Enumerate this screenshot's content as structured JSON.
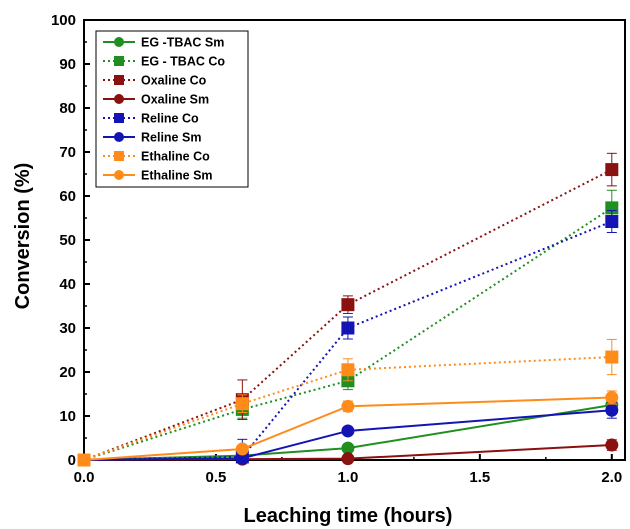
{
  "chart_data": {
    "type": "line",
    "title": "",
    "xlabel": "Leaching time (hours)",
    "ylabel": "Conversion (%)",
    "xlim": [
      0,
      2.05
    ],
    "ylim": [
      0,
      100
    ],
    "xticks": [
      "0.0",
      "0.5",
      "1.0",
      "1.5",
      "2.0"
    ],
    "yticks": [
      "0",
      "10",
      "20",
      "30",
      "40",
      "50",
      "60",
      "70",
      "80",
      "90",
      "100"
    ],
    "grid": false,
    "legend_position": "top-left",
    "series": [
      {
        "name": "EG -TBAC Sm",
        "color": "#1f8f1f",
        "line": "solid",
        "marker": "circle",
        "x": [
          0,
          0.6,
          1.0,
          2.0
        ],
        "y": [
          0,
          1.0,
          2.7,
          12.5
        ],
        "err": [
          0,
          0,
          0.5,
          2.0
        ]
      },
      {
        "name": "EG - TBAC Co",
        "color": "#1f8f1f",
        "line": "dotted",
        "marker": "square",
        "x": [
          0,
          0.6,
          1.0,
          2.0
        ],
        "y": [
          0,
          11.5,
          18.0,
          57.3
        ],
        "err": [
          0,
          2.0,
          2.0,
          4.0
        ]
      },
      {
        "name": "Oxaline Co",
        "color": "#8b1010",
        "line": "dotted",
        "marker": "square",
        "x": [
          0,
          0.6,
          1.0,
          2.0
        ],
        "y": [
          0,
          13.7,
          35.3,
          66.0
        ],
        "err": [
          0,
          4.5,
          2.0,
          3.7
        ]
      },
      {
        "name": "Oxaline Sm",
        "color": "#8b1010",
        "line": "solid",
        "marker": "circle",
        "x": [
          0,
          0.6,
          1.0,
          2.0
        ],
        "y": [
          0,
          0.2,
          0.3,
          3.4
        ],
        "err": [
          0,
          0,
          0,
          1.2
        ]
      },
      {
        "name": "Reline Co",
        "color": "#1414b4",
        "line": "dotted",
        "marker": "square",
        "x": [
          0,
          0.6,
          1.0,
          2.0
        ],
        "y": [
          0,
          0.7,
          30.0,
          54.2
        ],
        "err": [
          0,
          4.0,
          2.5,
          2.5
        ]
      },
      {
        "name": "Reline Sm",
        "color": "#1414b4",
        "line": "solid",
        "marker": "circle",
        "x": [
          0,
          0.6,
          1.0,
          2.0
        ],
        "y": [
          0,
          0.4,
          6.6,
          11.3
        ],
        "err": [
          0,
          0,
          0.5,
          1.8
        ]
      },
      {
        "name": "Ethaline Co",
        "color": "#ff8c1a",
        "line": "dotted",
        "marker": "square",
        "x": [
          0,
          0.6,
          1.0,
          2.0
        ],
        "y": [
          0,
          12.8,
          20.5,
          23.4
        ],
        "err": [
          0,
          2.0,
          2.5,
          4.0
        ]
      },
      {
        "name": "Ethaline Sm",
        "color": "#ff8c1a",
        "line": "solid",
        "marker": "circle",
        "x": [
          0,
          0.6,
          1.0,
          2.0
        ],
        "y": [
          0,
          2.5,
          12.2,
          14.2
        ],
        "err": [
          0,
          0.5,
          1.2,
          1.5
        ]
      }
    ]
  }
}
